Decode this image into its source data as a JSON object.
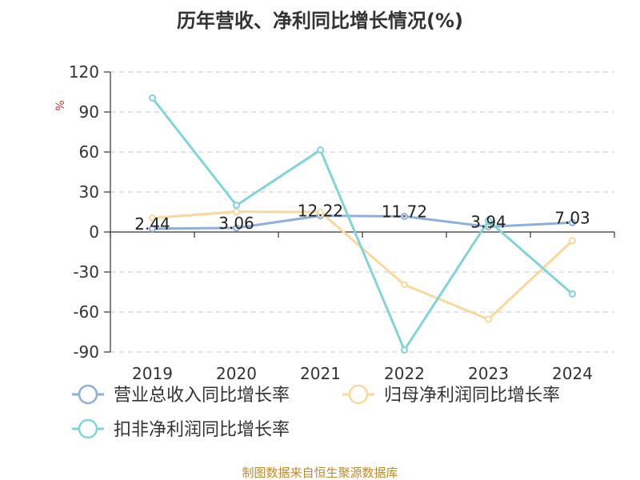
{
  "chart_data": {
    "type": "line",
    "title": "历年营收、净利同比增长情况(%)",
    "ylabel": "%",
    "categories": [
      "2019",
      "2020",
      "2021",
      "2022",
      "2023",
      "2024"
    ],
    "ylim": [
      -90,
      120
    ],
    "yticks": [
      120,
      90,
      60,
      30,
      0,
      -30,
      -60,
      -90
    ],
    "grid": true,
    "legend_position": "bottom-left",
    "series": [
      {
        "name": "营业总收入同比增长率",
        "values": [
          2.44,
          3.06,
          12.22,
          11.72,
          3.94,
          7.03
        ],
        "color": "#8eaedb",
        "labels": [
          "2.44",
          "3.06",
          "12.22",
          "11.72",
          "3.94",
          "7.03"
        ]
      },
      {
        "name": "归母净利润同比增长率",
        "values": [
          10.5,
          15.2,
          15.0,
          -39.5,
          -65.5,
          -6.5
        ],
        "color": "#f9d99b"
      },
      {
        "name": "扣非净利润同比增长率",
        "values": [
          100.5,
          20.0,
          61.5,
          -88.5,
          8.5,
          -46.5
        ],
        "color": "#82d4d8"
      }
    ]
  },
  "source_text": "制图数据来自恒生聚源数据库"
}
